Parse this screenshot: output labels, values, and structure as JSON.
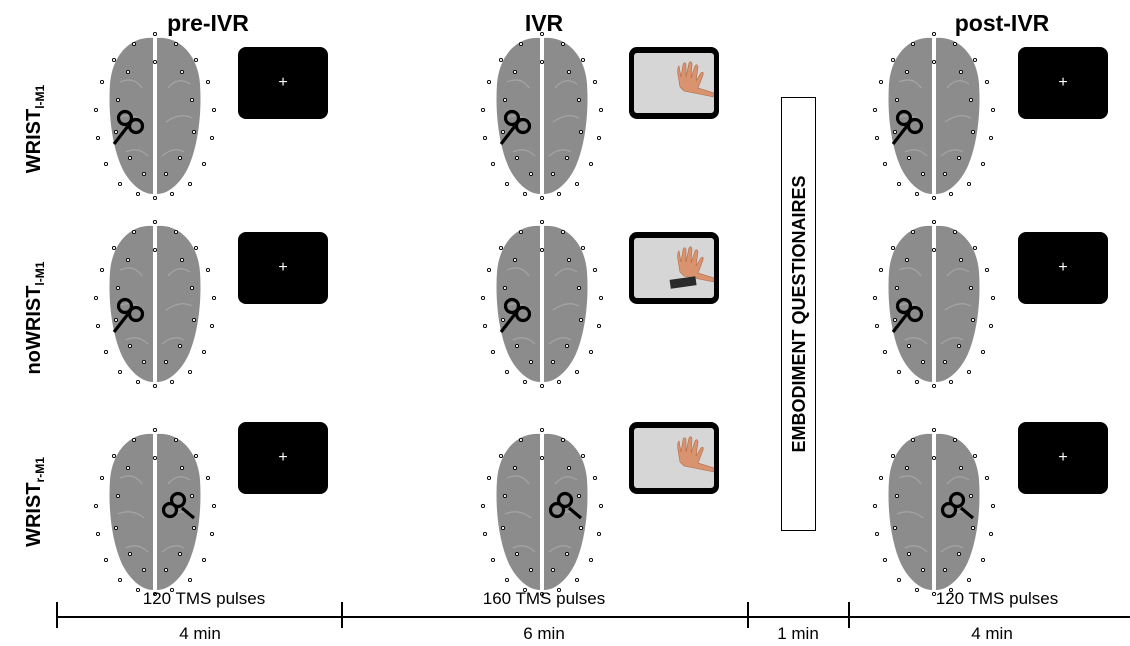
{
  "columns": {
    "pre": "pre-IVR",
    "ivr": "IVR",
    "post": "post-IVR"
  },
  "rows": [
    {
      "label_main": "WRIST",
      "label_sub": "l-M1"
    },
    {
      "label_main": "noWRIST",
      "label_sub": "l-M1"
    },
    {
      "label_main": "WRIST",
      "label_sub": "r-M1"
    }
  ],
  "fixation_symbol": "+",
  "questionnaire": "EMBODIMENT QUESTIONAIRES",
  "timeline": {
    "pulses": [
      "120 TMS pulses",
      "160 TMS pulses",
      "120 TMS pulses"
    ],
    "durations": [
      "4 min",
      "6 min",
      "1 min",
      "4 min"
    ]
  },
  "colors": {
    "brain": "#8c8c8c",
    "screen": "#000000",
    "photo_background": "#d6d6d6",
    "skin": "#d9936e",
    "bracelet": "#2a2a2a"
  },
  "icons": {
    "tms_coil": "figure-eight-coil-icon",
    "fixation": "fixation-cross",
    "hand": "hand-photo"
  }
}
